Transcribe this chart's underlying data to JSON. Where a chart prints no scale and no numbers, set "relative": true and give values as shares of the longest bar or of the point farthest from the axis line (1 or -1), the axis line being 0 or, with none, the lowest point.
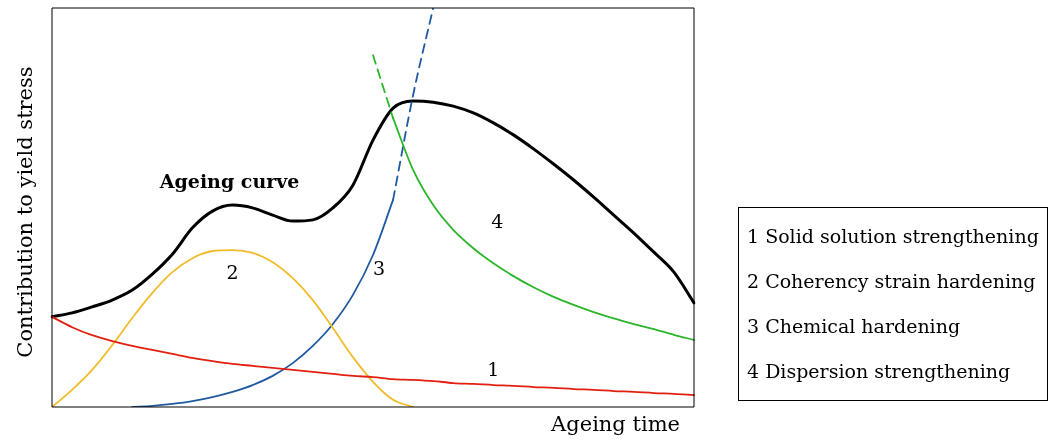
{
  "chart_data": {
    "type": "line",
    "relative": true,
    "xlabel": "Ageing time",
    "ylabel": "Contribution to yield stress",
    "marker": "none",
    "categories": [
      null,
      null,
      null,
      null,
      null,
      null,
      null,
      null,
      null,
      null,
      null,
      null,
      null,
      null,
      null,
      null,
      null,
      null,
      null,
      null,
      null,
      null,
      null,
      null,
      null,
      null,
      null,
      null,
      null,
      null,
      null,
      null,
      null
    ],
    "series": [
      {
        "name": "1",
        "color": "#e2200f",
        "line_style": "solid",
        "values": [
          0.226,
          0.2,
          0.18,
          0.165,
          0.153,
          0.143,
          0.133,
          0.123,
          0.115,
          0.108,
          0.103,
          0.098,
          0.093,
          0.088,
          0.083,
          0.078,
          0.075,
          0.07,
          0.068,
          0.065,
          0.06,
          0.058,
          0.055,
          0.053,
          0.05,
          0.048,
          0.045,
          0.043,
          0.04,
          0.038,
          0.035,
          0.033,
          0.03
        ]
      },
      {
        "name": "2",
        "color": "#f2bb2a",
        "line_style": "solid",
        "values": [
          0,
          0.043,
          0.093,
          0.155,
          0.223,
          0.286,
          0.338,
          0.373,
          0.391,
          0.393,
          0.386,
          0.363,
          0.323,
          0.268,
          0.198,
          0.125,
          0.063,
          0.018,
          0,
          null,
          null,
          null,
          null,
          null,
          null,
          null,
          null,
          null,
          null,
          null,
          null,
          null,
          null
        ]
      },
      {
        "name": "3",
        "color": "#1f5aa0",
        "line_style": "solid",
        "values": [
          null,
          null,
          null,
          null,
          0,
          0.003,
          0.008,
          0.015,
          0.025,
          0.038,
          0.055,
          0.078,
          0.11,
          0.153,
          0.208,
          0.281,
          0.381,
          0.519,
          null,
          null,
          null,
          null,
          null,
          null,
          null,
          null,
          null,
          null,
          null,
          null,
          null,
          null,
          null
        ]
      },
      {
        "name": "4",
        "color": "#2bb52b",
        "line_style": "solid",
        "values": [
          null,
          null,
          null,
          null,
          null,
          null,
          null,
          null,
          null,
          null,
          null,
          null,
          null,
          null,
          null,
          null,
          null,
          0.724,
          0.594,
          0.506,
          0.444,
          0.398,
          0.36,
          0.328,
          0.3,
          0.276,
          0.256,
          0.238,
          0.222,
          0.208,
          0.195,
          0.181,
          0.168
        ]
      },
      {
        "color": "#1f5aa0",
        "line_style": "dashed",
        "values": [
          null,
          null,
          null,
          null,
          null,
          null,
          null,
          null,
          null,
          null,
          null,
          null,
          null,
          null,
          null,
          null,
          null,
          0.519,
          0.782,
          1,
          null,
          null,
          null,
          null,
          null,
          null,
          null,
          null,
          null,
          null,
          null,
          null,
          null
        ]
      },
      {
        "color": "#2bb52b",
        "line_style": "dashed",
        "values": [
          null,
          null,
          null,
          null,
          null,
          null,
          null,
          null,
          null,
          null,
          null,
          null,
          null,
          null,
          null,
          null,
          0.882,
          0.724,
          null,
          null,
          null,
          null,
          null,
          null,
          null,
          null,
          null,
          null,
          null,
          null,
          null,
          null,
          null
        ]
      },
      {
        "name": "Ageing curve",
        "color": "#000000",
        "line_style": "solid",
        "values": [
          0.226,
          0.236,
          0.251,
          0.268,
          0.293,
          0.333,
          0.383,
          0.449,
          0.491,
          0.506,
          0.499,
          0.481,
          0.466,
          0.469,
          0.499,
          0.556,
          0.669,
          0.749,
          0.767,
          0.764,
          0.754,
          0.737,
          0.712,
          0.682,
          0.647,
          0.609,
          0.569,
          0.526,
          0.481,
          0.436,
          0.388,
          0.338,
          0.261
        ]
      }
    ],
    "annotations": [
      "1 Solid solution strengthening",
      "2 Coherency strain hardening",
      "3 Chemical hardening",
      "4 Dispersion strengthening"
    ]
  }
}
